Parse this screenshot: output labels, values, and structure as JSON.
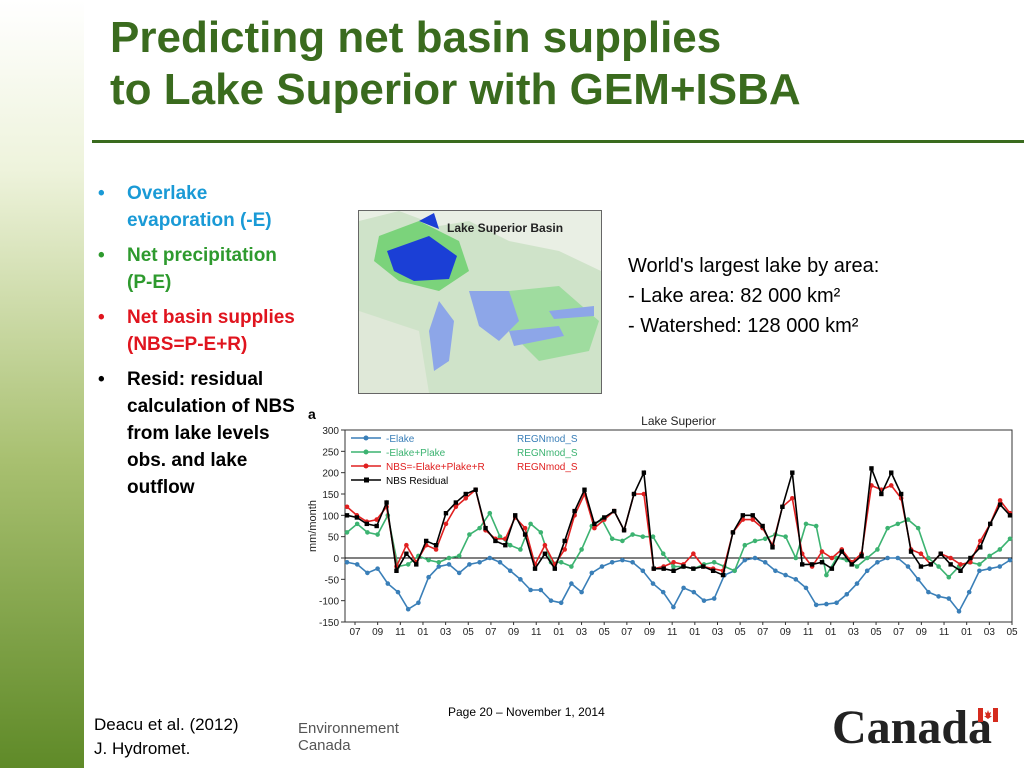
{
  "slide": {
    "title_line1": "Predicting net basin supplies",
    "title_line2": "to Lake Superior with GEM+ISBA"
  },
  "bullets": [
    {
      "text": "Overlake evaporation (-E)",
      "color": "#1a9ad6"
    },
    {
      "text": "Net precipitation (P-E)",
      "color": "#2e9a2e"
    },
    {
      "text": "Net basin supplies (NBS=P-E+R)",
      "color": "#e0141e"
    },
    {
      "text": "Resid: residual calculation of NBS from lake levels obs. and lake outflow",
      "color": "#000000"
    }
  ],
  "map": {
    "label": "Lake Superior Basin"
  },
  "facts": {
    "line1": "World's largest lake by area:",
    "line2": "- Lake area: 82 000 km²",
    "line3": "- Watershed: 128 000 km²"
  },
  "chart_data": {
    "type": "line",
    "panel_letter": "a",
    "title": "Lake Superior",
    "xlabel": "",
    "ylabel": "mm/month",
    "ylim": [
      -150,
      300
    ],
    "yticks": [
      -150,
      -100,
      -50,
      0,
      50,
      100,
      150,
      200,
      250,
      300
    ],
    "x_tick_labels": [
      "07",
      "09",
      "11",
      "01",
      "03",
      "05",
      "07",
      "09",
      "11",
      "01",
      "03",
      "05",
      "07",
      "09",
      "11",
      "01",
      "03",
      "05",
      "07",
      "09",
      "11",
      "01",
      "03",
      "05",
      "07",
      "09",
      "11",
      "01",
      "03",
      "05"
    ],
    "grid": false,
    "legend_placement": "top-left",
    "legend": [
      {
        "series": "-Elake",
        "model": "REGNmod_S"
      },
      {
        "series": "-Elake+Plake",
        "model": "REGNmod_S"
      },
      {
        "series": "NBS=-Elake+Plake+R",
        "model": "REGNmod_S"
      },
      {
        "series": "NBS Residual",
        "model": ""
      }
    ],
    "series": [
      {
        "name": "-Elake",
        "color": "#3a7fb8",
        "values": [
          -10,
          -15,
          -35,
          -25,
          -60,
          -80,
          -120,
          -105,
          -45,
          -20,
          -15,
          -35,
          -15,
          -10,
          0,
          -10,
          -30,
          -50,
          -75,
          -75,
          -100,
          -105,
          -60,
          -80,
          -35,
          -20,
          -10,
          -5,
          -10,
          -30,
          -60,
          -80,
          -115,
          -70,
          -80,
          -100,
          -95,
          -40,
          -30,
          -5,
          0,
          -10,
          -30,
          -40,
          -50,
          -70,
          -110,
          -108,
          -105,
          -85,
          -60,
          -30,
          -10,
          0,
          0,
          -20,
          -50,
          -80,
          -90,
          -95,
          -125,
          -80,
          -30,
          -25,
          -20,
          -5
        ]
      },
      {
        "name": "-Elake+Plake",
        "color": "#3cb371",
        "values": [
          60,
          80,
          60,
          55,
          100,
          -20,
          -15,
          5,
          -5,
          -10,
          0,
          5,
          55,
          70,
          105,
          50,
          30,
          20,
          80,
          60,
          -10,
          -10,
          -20,
          20,
          75,
          90,
          45,
          40,
          55,
          50,
          50,
          10,
          -20,
          -20,
          -25,
          -15,
          -10,
          -20,
          -30,
          30,
          40,
          45,
          55,
          50,
          0,
          80,
          75,
          -40,
          0,
          -5,
          -20,
          0,
          20,
          70,
          80,
          90,
          70,
          0,
          -20,
          -45,
          -20,
          -10,
          -15,
          5,
          20,
          45
        ]
      },
      {
        "name": "NBS=-Elake+Plake+R",
        "color": "#e02020",
        "values": [
          120,
          100,
          85,
          90,
          120,
          -20,
          30,
          -10,
          30,
          20,
          80,
          120,
          140,
          160,
          65,
          45,
          45,
          95,
          70,
          -15,
          30,
          -15,
          20,
          100,
          150,
          70,
          90,
          110,
          65,
          150,
          150,
          -25,
          -20,
          -10,
          -15,
          10,
          -20,
          -25,
          -30,
          60,
          90,
          90,
          70,
          30,
          120,
          140,
          10,
          -20,
          15,
          0,
          20,
          -10,
          10,
          170,
          160,
          170,
          140,
          20,
          10,
          -15,
          10,
          0,
          -15,
          -10,
          40,
          80,
          135,
          105
        ]
      },
      {
        "name": "NBS Residual",
        "color": "#000000",
        "values": [
          100,
          95,
          80,
          75,
          130,
          -30,
          10,
          -15,
          40,
          30,
          105,
          130,
          150,
          160,
          70,
          40,
          30,
          100,
          55,
          -25,
          10,
          -25,
          40,
          110,
          160,
          80,
          95,
          110,
          65,
          150,
          200,
          -25,
          -25,
          -30,
          -20,
          -25,
          -20,
          -30,
          -40,
          60,
          100,
          100,
          75,
          25,
          120,
          200,
          -15,
          -15,
          -10,
          -25,
          15,
          -15,
          5,
          210,
          150,
          200,
          150,
          15,
          -20,
          -15,
          10,
          -15,
          -30,
          0,
          25,
          80,
          125,
          100
        ]
      }
    ]
  },
  "footer": {
    "citation_line1": "Deacu et al. (2012)",
    "citation_line2": "J. Hydromet.",
    "page": "Page 20 – November 1, 2014",
    "env_line1": "Environnement",
    "env_line2": "Canada",
    "wordmark": "Canada",
    "flag_color": "#d52b1e"
  }
}
